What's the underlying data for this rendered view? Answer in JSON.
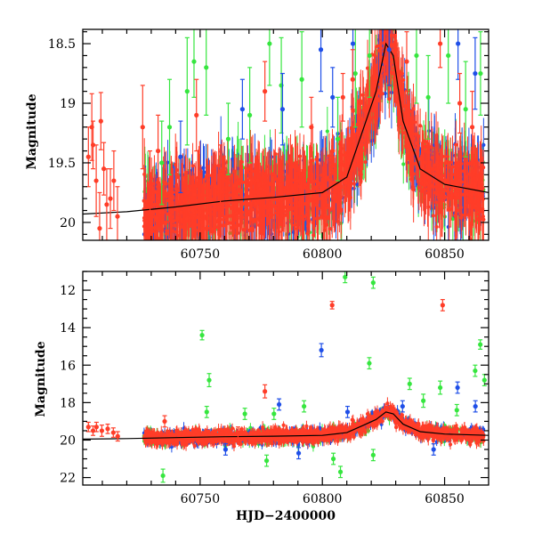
{
  "colors": {
    "red": "#ff3d28",
    "blue": "#1f4fe8",
    "green": "#36e63f",
    "model": "#000000"
  },
  "chart_data": [
    {
      "type": "scatter",
      "title": "",
      "xlabel": "",
      "ylabel": "Magnitude",
      "xlim": [
        60702,
        60868
      ],
      "ylim": [
        20.15,
        18.38
      ],
      "y_inverted": true,
      "x_ticks": [
        60750,
        60800,
        60850
      ],
      "y_ticks": [
        18.5,
        19,
        19.5,
        20
      ],
      "y_tick_labels": [
        "18.5",
        "19",
        "19.5",
        "20"
      ],
      "series": [
        {
          "color": "red",
          "points": [
            [
              60704.3,
              19.45,
              0.25
            ],
            [
              60705.7,
              19.2,
              0.28
            ],
            [
              60706.2,
              19.35,
              0.2
            ],
            [
              60707.5,
              19.65,
              0.3
            ],
            [
              60708.9,
              20.05,
              0.3
            ],
            [
              60709.4,
              19.15,
              0.24
            ],
            [
              60710.6,
              19.55,
              0.22
            ],
            [
              60711.8,
              19.85,
              0.3
            ],
            [
              60713.3,
              19.8,
              0.25
            ],
            [
              60714.7,
              19.65,
              0.25
            ],
            [
              60716.2,
              19.95,
              0.25
            ],
            [
              60726.5,
              19.2,
              0.35
            ],
            [
              60729.5,
              19.7,
              0.3
            ],
            [
              60732.8,
              19.4,
              0.3
            ],
            [
              60748.5,
              19.1,
              0.3
            ],
            [
              60758.3,
              19.6,
              0.25
            ],
            [
              60776.5,
              18.9,
              0.25
            ],
            [
              60795.5,
              19.2,
              0.25
            ],
            [
              60808.4,
              18.95,
              0.2
            ],
            [
              60812.4,
              18.8,
              0.25
            ],
            [
              60834.5,
              18.65,
              0.25
            ],
            [
              60848.2,
              18.5,
              0.2
            ],
            [
              60856.2,
              19.0,
              0.25
            ],
            [
              60861.3,
              19.2,
              0.3
            ]
          ]
        },
        {
          "color": "blue",
          "points": [
            [
              60742,
              19.45,
              0.3
            ],
            [
              60767.3,
              19.05,
              0.25
            ],
            [
              60783.7,
              19.05,
              0.3
            ],
            [
              60799.4,
              18.55,
              0.35
            ],
            [
              60804.2,
              18.95,
              0.25
            ],
            [
              60812.5,
              18.5,
              0.3
            ],
            [
              60827.3,
              18.55,
              0.3
            ],
            [
              60855.5,
              18.5,
              0.3
            ],
            [
              60862.5,
              18.75,
              0.3
            ]
          ]
        },
        {
          "color": "green",
          "points": [
            [
              60734.3,
              19.5,
              0.35
            ],
            [
              60737.5,
              19.2,
              0.4
            ],
            [
              60744.7,
              18.9,
              0.45
            ],
            [
              60747.5,
              18.65,
              0.3
            ],
            [
              60752.5,
              18.7,
              0.4
            ],
            [
              60761.5,
              19.3,
              0.3
            ],
            [
              60770.3,
              19.1,
              0.4
            ],
            [
              60778.4,
              18.5,
              0.35
            ],
            [
              60783.2,
              18.85,
              0.4
            ],
            [
              60791.6,
              18.8,
              0.4
            ],
            [
              60806.3,
              19.3,
              0.35
            ],
            [
              60813.5,
              18.75,
              0.45
            ],
            [
              60819.3,
              18.6,
              0.35
            ],
            [
              60838.5,
              18.6,
              0.4
            ],
            [
              60843.3,
              18.95,
              0.35
            ],
            [
              60851.5,
              18.6,
              0.4
            ],
            [
              60858.6,
              19.05,
              0.4
            ],
            [
              60864.7,
              18.75,
              0.35
            ]
          ]
        }
      ],
      "model_curve": [
        [
          60702,
          19.93
        ],
        [
          60720,
          19.91
        ],
        [
          60740,
          19.87
        ],
        [
          60760,
          19.82
        ],
        [
          60780,
          19.79
        ],
        [
          60800,
          19.75
        ],
        [
          60810,
          19.62
        ],
        [
          60817,
          19.2
        ],
        [
          60822,
          18.9
        ],
        [
          60826,
          18.5
        ],
        [
          60829,
          18.6
        ],
        [
          60833,
          19.15
        ],
        [
          60840,
          19.55
        ],
        [
          60850,
          19.68
        ],
        [
          60868,
          19.75
        ]
      ]
    },
    {
      "type": "scatter",
      "title": "",
      "xlabel": "HJD−2400000",
      "ylabel": "Magnitude",
      "xlim": [
        60702,
        60868
      ],
      "ylim": [
        22.4,
        11.0
      ],
      "y_inverted": true,
      "x_ticks": [
        60750,
        60800,
        60850
      ],
      "y_ticks": [
        12,
        14,
        16,
        18,
        20,
        22
      ],
      "y_tick_labels": [
        "12",
        "14",
        "16",
        "18",
        "20",
        "22"
      ],
      "series": [
        {
          "color": "red",
          "points": [
            [
              60704.3,
              19.3,
              0.25
            ],
            [
              60706.2,
              19.5,
              0.25
            ],
            [
              60707.6,
              19.3,
              0.25
            ],
            [
              60709.8,
              19.5,
              0.3
            ],
            [
              60712.2,
              19.4,
              0.25
            ],
            [
              60714.5,
              19.6,
              0.25
            ],
            [
              60716.3,
              19.8,
              0.25
            ],
            [
              60776.5,
              17.4,
              0.35
            ],
            [
              60804.0,
              12.8,
              0.2
            ],
            [
              60849.2,
              12.8,
              0.3
            ],
            [
              60735.5,
              19.0,
              0.3
            ],
            [
              60765.5,
              19.6,
              0.3
            ]
          ]
        },
        {
          "color": "blue",
          "points": [
            [
              60799.6,
              15.2,
              0.35
            ],
            [
              60855.3,
              17.2,
              0.3
            ],
            [
              60862.6,
              18.2,
              0.3
            ],
            [
              60832.8,
              18.2,
              0.3
            ],
            [
              60760.4,
              20.5,
              0.3
            ],
            [
              60790.3,
              20.7,
              0.3
            ],
            [
              60845.5,
              20.5,
              0.3
            ],
            [
              60810.3,
              18.5,
              0.3
            ],
            [
              60782.3,
              18.1,
              0.3
            ]
          ]
        },
        {
          "color": "green",
          "points": [
            [
              60750.8,
              14.4,
              0.25
            ],
            [
              60753.7,
              16.8,
              0.35
            ],
            [
              60809.3,
              11.3,
              0.3
            ],
            [
              60820.8,
              11.6,
              0.3
            ],
            [
              60819.2,
              15.9,
              0.3
            ],
            [
              60864.6,
              14.9,
              0.25
            ],
            [
              60862.5,
              16.3,
              0.3
            ],
            [
              60866.3,
              16.8,
              0.3
            ],
            [
              60835.7,
              17.0,
              0.3
            ],
            [
              60841.3,
              17.9,
              0.35
            ],
            [
              60848.2,
              17.2,
              0.35
            ],
            [
              60855.0,
              18.4,
              0.3
            ],
            [
              60734.8,
              21.9,
              0.35
            ],
            [
              60807.4,
              21.7,
              0.3
            ],
            [
              60804.5,
              21.0,
              0.3
            ],
            [
              60777.2,
              21.1,
              0.3
            ],
            [
              60820.8,
              20.8,
              0.3
            ],
            [
              60752.7,
              18.5,
              0.3
            ],
            [
              60780.2,
              18.6,
              0.3
            ],
            [
              60792.5,
              18.2,
              0.3
            ],
            [
              60768.3,
              18.6,
              0.3
            ]
          ]
        }
      ],
      "model_curve": [
        [
          60702,
          19.95
        ],
        [
          60720,
          19.92
        ],
        [
          60740,
          19.87
        ],
        [
          60760,
          19.82
        ],
        [
          60780,
          19.79
        ],
        [
          60800,
          19.75
        ],
        [
          60810,
          19.6
        ],
        [
          60817,
          19.2
        ],
        [
          60822,
          18.9
        ],
        [
          60826,
          18.5
        ],
        [
          60829,
          18.6
        ],
        [
          60833,
          19.15
        ],
        [
          60840,
          19.55
        ],
        [
          60850,
          19.68
        ],
        [
          60868,
          19.75
        ]
      ]
    }
  ]
}
